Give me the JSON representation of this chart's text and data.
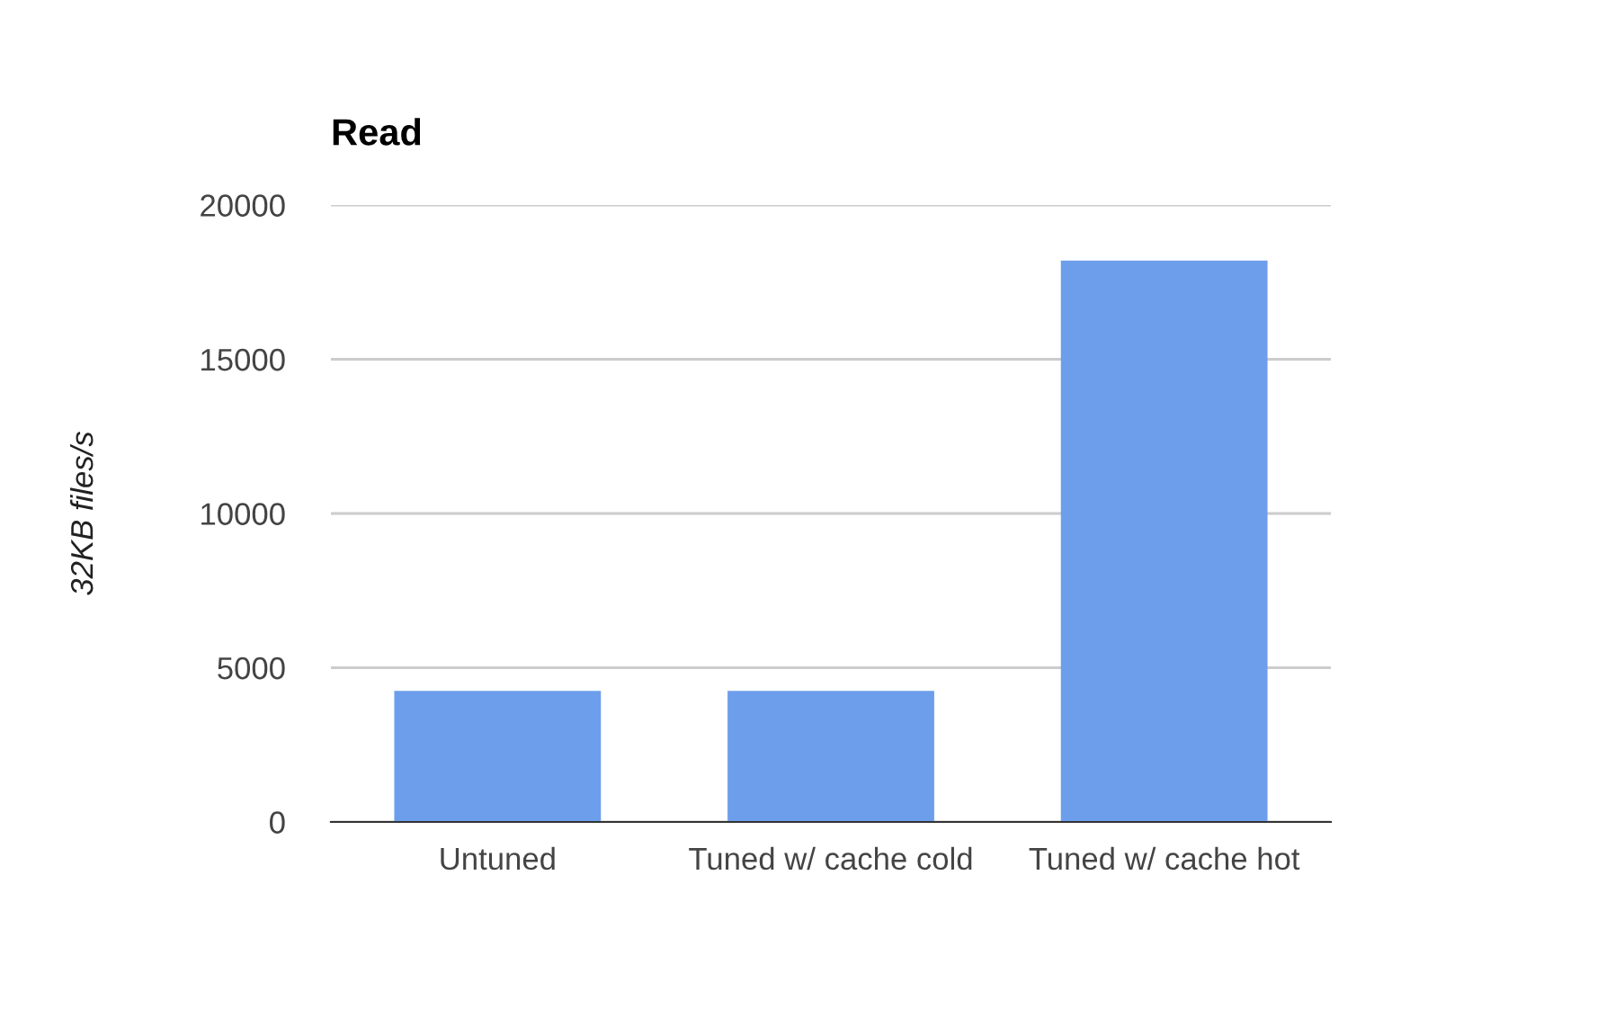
{
  "chart_data": {
    "type": "bar",
    "title": "Read",
    "ylabel": "32KB files/s",
    "categories": [
      "Untuned",
      "Tuned w/ cache cold",
      "Tuned w/ cache hot"
    ],
    "values": [
      4250,
      4250,
      18200
    ],
    "color": "#6d9eeb",
    "ylim": [
      0,
      20000
    ],
    "yticks": [
      0,
      5000,
      10000,
      15000,
      20000
    ],
    "grid": "y",
    "legend": false
  }
}
